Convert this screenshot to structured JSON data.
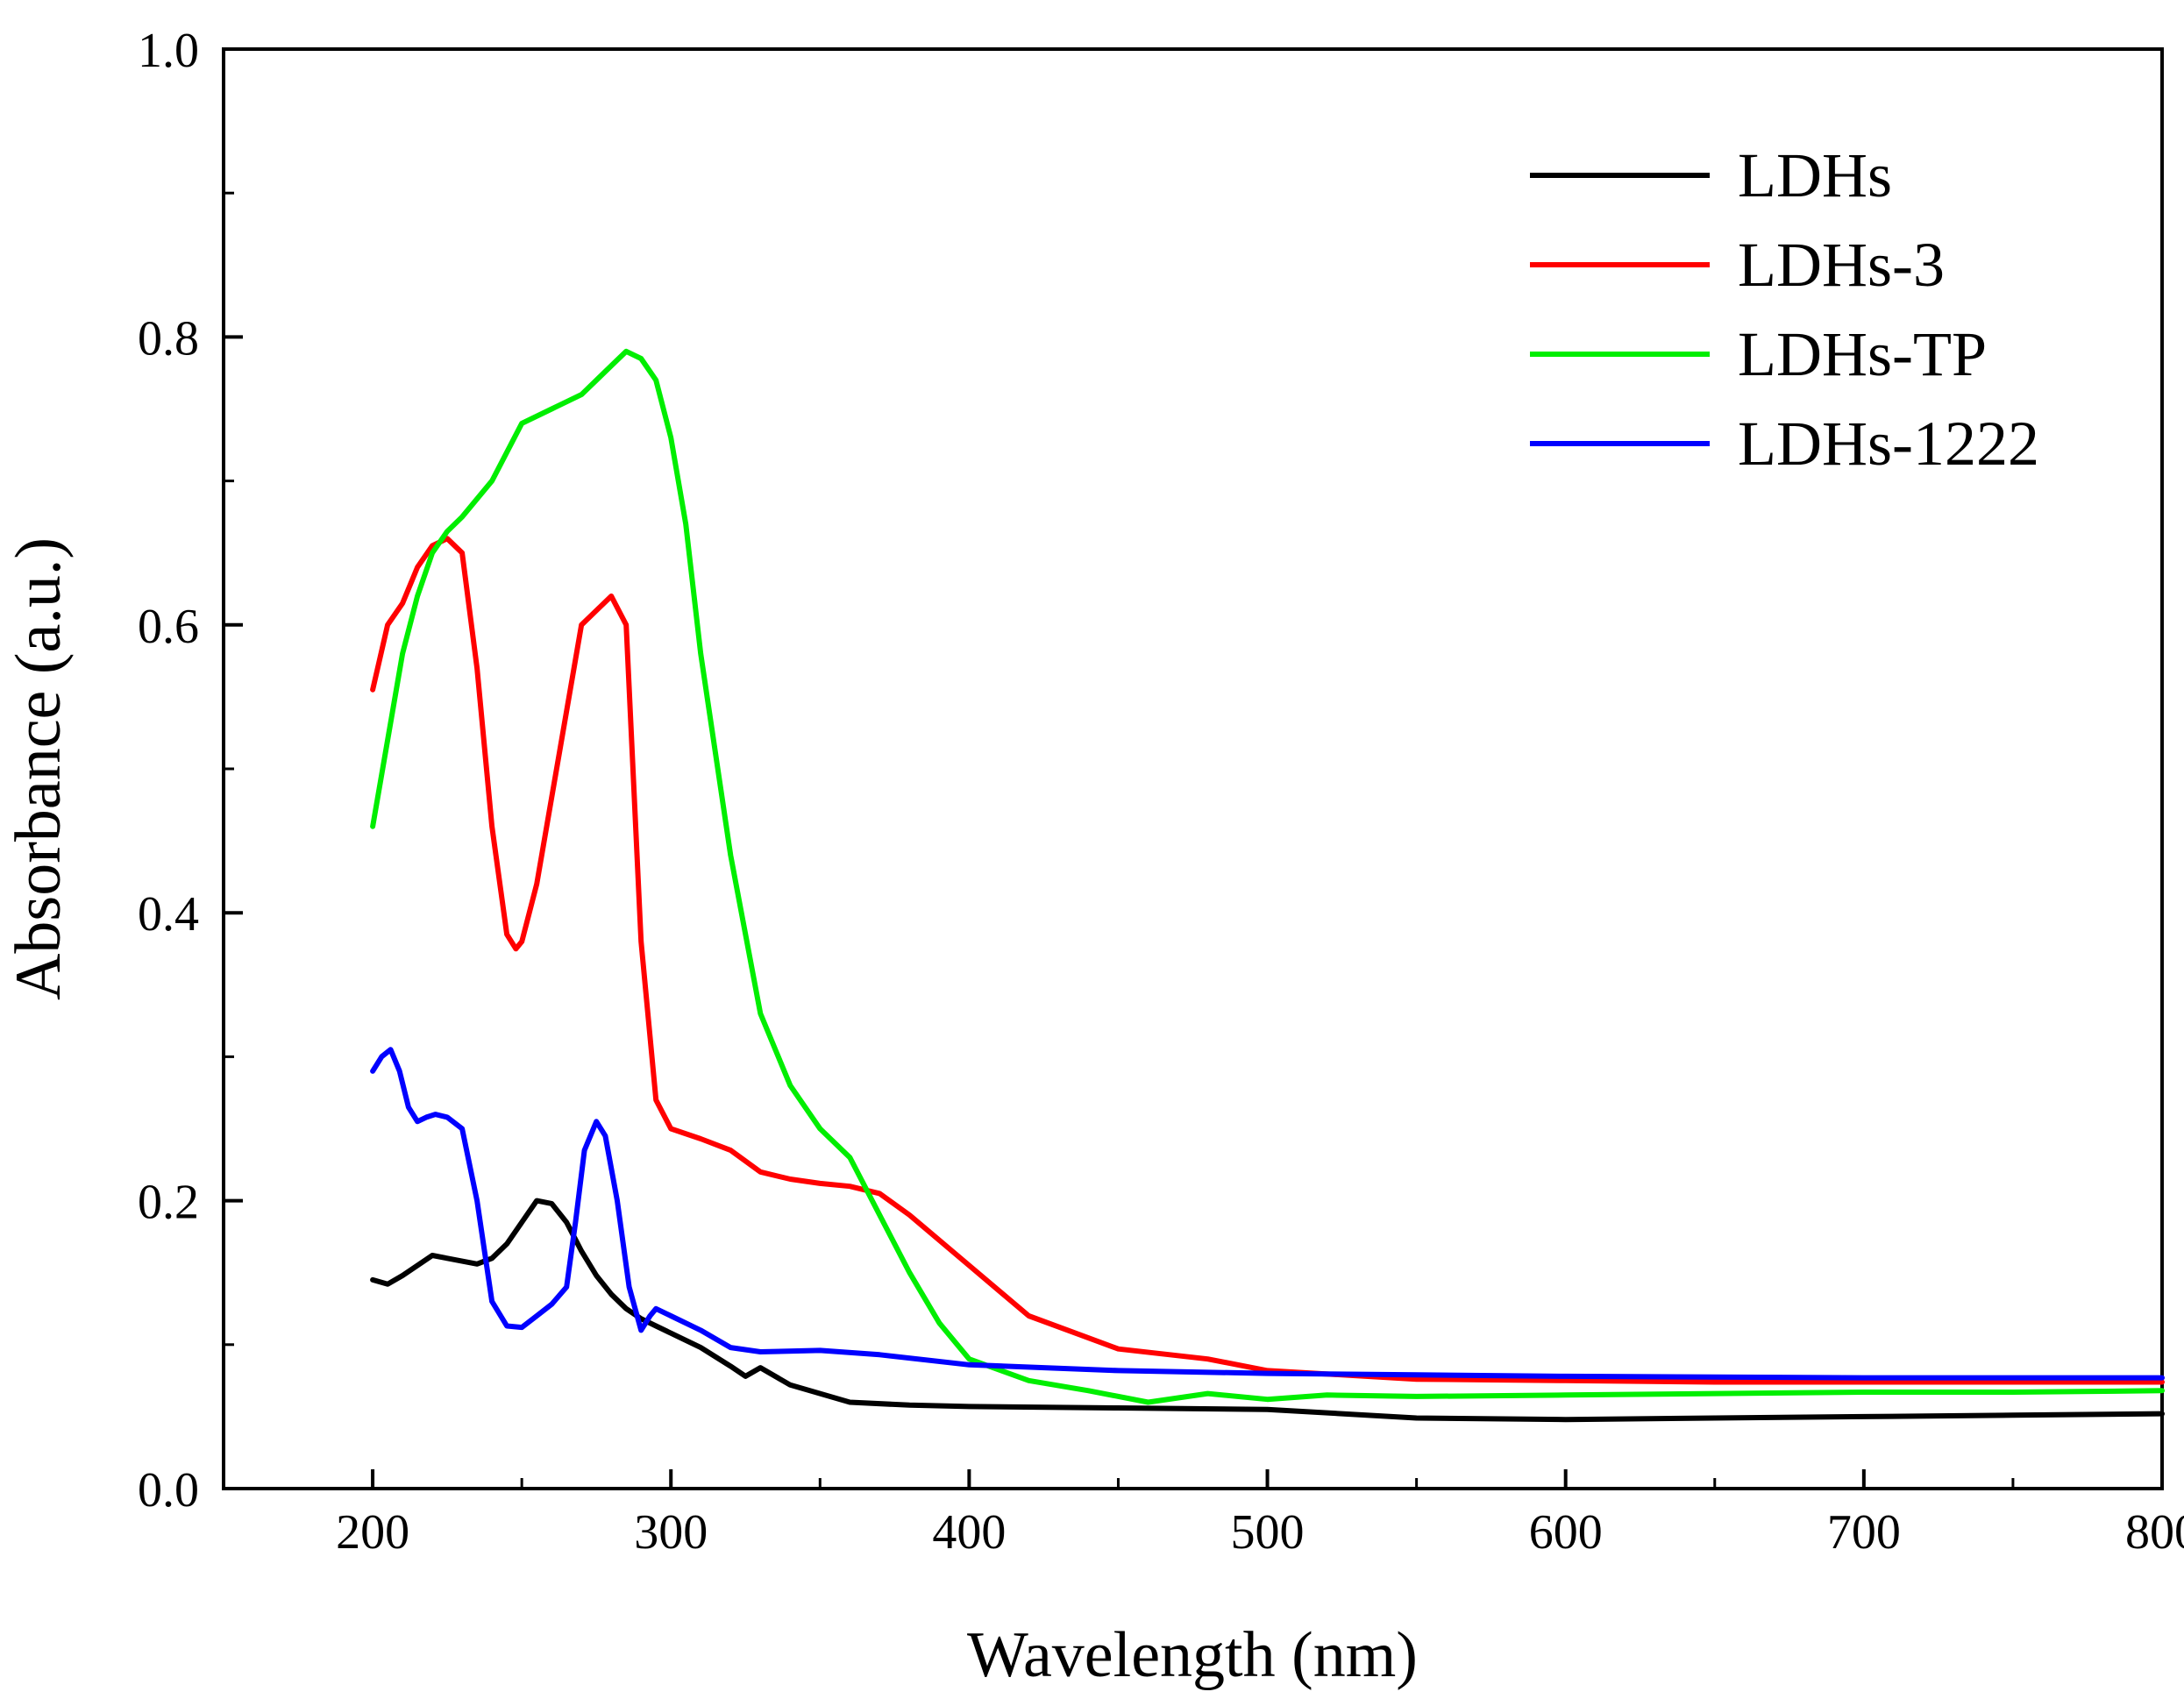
{
  "chart_data": {
    "type": "line",
    "title": "",
    "xlabel": "Wavelength (nm)",
    "ylabel": "Absorbance (a.u.)",
    "xlim": [
      150,
      800
    ],
    "ylim": [
      0.0,
      1.0
    ],
    "xticks": [
      200,
      300,
      400,
      500,
      600,
      700,
      800
    ],
    "xtick_labels": [
      "200",
      "300",
      "400",
      "500",
      "600",
      "700",
      "800"
    ],
    "yticks": [
      0.0,
      0.2,
      0.4,
      0.6,
      0.8,
      1.0
    ],
    "ytick_labels": [
      "0.0",
      "0.2",
      "0.4",
      "0.6",
      "0.8",
      "1.0"
    ],
    "grid": false,
    "legend_position": "top-right",
    "series": [
      {
        "name": "LDHs",
        "color": "#000000",
        "x": [
          200,
          205,
          210,
          215,
          220,
          225,
          230,
          235,
          240,
          245,
          250,
          255,
          260,
          265,
          270,
          275,
          280,
          285,
          290,
          295,
          300,
          310,
          320,
          325,
          330,
          340,
          350,
          360,
          380,
          400,
          450,
          500,
          550,
          600,
          650,
          700,
          750,
          800
        ],
        "values": [
          0.145,
          0.142,
          0.148,
          0.155,
          0.162,
          0.16,
          0.158,
          0.156,
          0.16,
          0.17,
          0.185,
          0.2,
          0.198,
          0.185,
          0.165,
          0.148,
          0.135,
          0.125,
          0.118,
          0.113,
          0.108,
          0.098,
          0.085,
          0.078,
          0.084,
          0.072,
          0.066,
          0.06,
          0.058,
          0.057,
          0.056,
          0.055,
          0.049,
          0.048,
          0.049,
          0.05,
          0.051,
          0.052
        ]
      },
      {
        "name": "LDHs-3",
        "color": "#ff0000",
        "x": [
          200,
          205,
          210,
          215,
          220,
          225,
          230,
          235,
          240,
          245,
          248,
          250,
          255,
          260,
          265,
          270,
          275,
          280,
          285,
          290,
          295,
          300,
          310,
          320,
          330,
          340,
          350,
          360,
          370,
          380,
          400,
          420,
          450,
          480,
          500,
          550,
          600,
          650,
          700,
          750,
          800
        ],
        "values": [
          0.555,
          0.6,
          0.615,
          0.64,
          0.655,
          0.66,
          0.65,
          0.57,
          0.46,
          0.385,
          0.375,
          0.38,
          0.42,
          0.48,
          0.54,
          0.6,
          0.61,
          0.62,
          0.6,
          0.38,
          0.27,
          0.25,
          0.243,
          0.235,
          0.22,
          0.215,
          0.212,
          0.21,
          0.205,
          0.19,
          0.155,
          0.12,
          0.097,
          0.09,
          0.082,
          0.076,
          0.075,
          0.074,
          0.074,
          0.074,
          0.074
        ]
      },
      {
        "name": "LDHs-TP",
        "color": "#00ee00",
        "x": [
          200,
          205,
          210,
          215,
          220,
          225,
          230,
          240,
          250,
          260,
          270,
          275,
          280,
          285,
          290,
          295,
          300,
          305,
          310,
          320,
          330,
          340,
          350,
          360,
          370,
          380,
          390,
          400,
          420,
          440,
          460,
          480,
          500,
          520,
          550,
          600,
          650,
          700,
          750,
          800
        ],
        "values": [
          0.46,
          0.52,
          0.58,
          0.62,
          0.65,
          0.665,
          0.675,
          0.7,
          0.74,
          0.75,
          0.76,
          0.77,
          0.78,
          0.79,
          0.785,
          0.77,
          0.73,
          0.67,
          0.58,
          0.44,
          0.33,
          0.28,
          0.25,
          0.23,
          0.19,
          0.15,
          0.115,
          0.09,
          0.075,
          0.068,
          0.06,
          0.066,
          0.062,
          0.065,
          0.064,
          0.065,
          0.066,
          0.067,
          0.067,
          0.068
        ]
      },
      {
        "name": "LDHs-1222",
        "color": "#0000ff",
        "x": [
          200,
          203,
          206,
          209,
          212,
          215,
          218,
          221,
          225,
          230,
          235,
          240,
          245,
          250,
          255,
          260,
          265,
          268,
          271,
          275,
          278,
          282,
          286,
          290,
          293,
          295,
          300,
          310,
          320,
          330,
          350,
          370,
          400,
          450,
          500,
          550,
          600,
          700,
          800
        ],
        "values": [
          0.29,
          0.3,
          0.305,
          0.29,
          0.265,
          0.255,
          0.258,
          0.26,
          0.258,
          0.25,
          0.2,
          0.13,
          0.113,
          0.112,
          0.12,
          0.128,
          0.14,
          0.185,
          0.235,
          0.255,
          0.245,
          0.2,
          0.14,
          0.11,
          0.12,
          0.125,
          0.12,
          0.11,
          0.098,
          0.095,
          0.096,
          0.093,
          0.086,
          0.082,
          0.08,
          0.079,
          0.078,
          0.077,
          0.077
        ]
      }
    ]
  }
}
